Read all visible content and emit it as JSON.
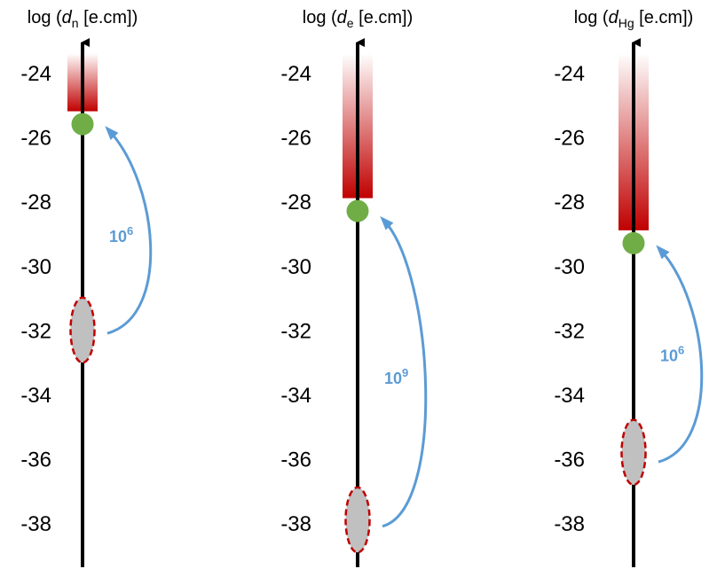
{
  "colors": {
    "axis": "#000000",
    "limit_bar": "#c00000",
    "measured_dot": "#70ad47",
    "prediction_fill": "#c0c0c0",
    "prediction_outline": "#c00000",
    "arrow": "#5b9bd5"
  },
  "panels": [
    {
      "id": "neutron",
      "title": {
        "prefix": "log (",
        "symbol": "d",
        "subscript": "n",
        "suffix": " [e.cm])"
      },
      "ticks": [
        "-24",
        "-26",
        "-28",
        "-30",
        "-32",
        "-34",
        "-36",
        "-38"
      ],
      "limit_bar": {
        "from": -23.4,
        "to": -25.2
      },
      "measured": -25.6,
      "prediction": {
        "center": -32.0,
        "half_span": 0.9
      },
      "arrow": {
        "from": -32.1,
        "to": -25.8
      },
      "factor": {
        "base": "10",
        "exponent": "6",
        "at": -29.1
      }
    },
    {
      "id": "electron",
      "title": {
        "prefix": "log (",
        "symbol": "d",
        "subscript": "e",
        "suffix": " [e.cm])"
      },
      "ticks": [
        "-24",
        "-26",
        "-28",
        "-30",
        "-32",
        "-34",
        "-36",
        "-38"
      ],
      "limit_bar": {
        "from": -23.4,
        "to": -27.9
      },
      "measured": -28.3,
      "prediction": {
        "center": -37.9,
        "half_span": 0.9
      },
      "arrow": {
        "from": -38.1,
        "to": -28.6
      },
      "factor": {
        "base": "10",
        "exponent": "9",
        "at": -33.5
      }
    },
    {
      "id": "mercury",
      "title": {
        "prefix": "log (",
        "symbol": "d",
        "subscript": "Hg",
        "suffix": " [e.cm])"
      },
      "ticks": [
        "-24",
        "-26",
        "-28",
        "-30",
        "-32",
        "-34",
        "-36",
        "-38"
      ],
      "limit_bar": {
        "from": -23.4,
        "to": -28.9
      },
      "measured": -29.3,
      "prediction": {
        "center": -35.8,
        "half_span": 0.9
      },
      "arrow": {
        "from": -36.1,
        "to": -29.5
      },
      "factor": {
        "base": "10",
        "exponent": "6",
        "at": -32.8
      }
    }
  ]
}
